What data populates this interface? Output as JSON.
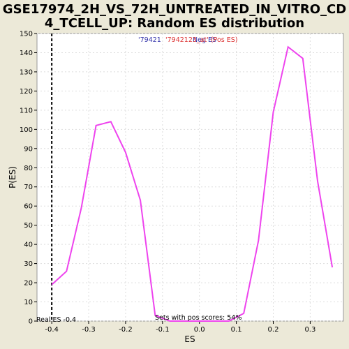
{
  "chart_data": {
    "type": "line",
    "title": "GSE17974_2H_VS_72H_UNTREATED_IN_VITRO_CD4_TCELL_UP: Random ES distribution",
    "title_lines": [
      "GSE17974_2H_VS_72H_UNTREATED_IN_VITRO_CD",
      "4_TCELL_UP: Random ES distribution"
    ],
    "xlabel": "ES",
    "ylabel": "P(ES)",
    "xlim": [
      -0.44,
      0.39
    ],
    "ylim": [
      0,
      150
    ],
    "x_ticks": [
      "-0.4",
      "-0.3",
      "-0.2",
      "-0.1",
      "0.0",
      "0.1",
      "0.2",
      "0.3"
    ],
    "y_ticks": [
      "0",
      "10",
      "20",
      "30",
      "40",
      "50",
      "60",
      "70",
      "80",
      "90",
      "100",
      "110",
      "120",
      "130",
      "140",
      "150"
    ],
    "grid": true,
    "series": [
      {
        "name": "",
        "color": "#ee44ee",
        "x": [
          -0.4,
          -0.36,
          -0.32,
          -0.28,
          -0.24,
          -0.2,
          -0.16,
          -0.12,
          -0.08,
          -0.04,
          0.0,
          0.04,
          0.08,
          0.12,
          0.16,
          0.2,
          0.24,
          0.28,
          0.32,
          0.36
        ],
        "y": [
          19,
          26,
          59,
          102,
          104,
          88,
          63,
          3,
          0,
          0,
          0,
          0,
          0,
          4,
          42,
          109,
          143,
          137,
          73,
          28
        ]
      }
    ],
    "actual_es": {
      "value": -0.4,
      "label": "Real ES -0.4",
      "color": "#000000"
    },
    "legend_items": [
      {
        "text": "'79421"
      },
      {
        "text": "Neg ES"
      },
      {
        "text": "'7942123_at' (Pos ES)"
      }
    ],
    "annotations": {
      "pos_scores": "Sets with pos scores: 54%"
    },
    "colors": {
      "background": "#ece9d8",
      "plot_bg": "#ffffff",
      "line": "#ee44ee",
      "neg_label": "#3333aa",
      "pos_label": "#dd3333",
      "grid": "#dddddd"
    }
  }
}
